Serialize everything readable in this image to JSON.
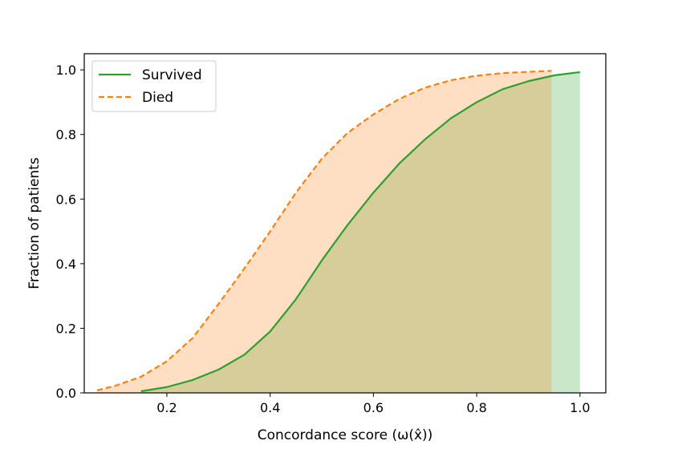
{
  "chart_data": {
    "type": "area",
    "xlabel": "Concordance score (ω(x̂))",
    "ylabel": "Fraction of patients",
    "xlim": [
      0.04,
      1.05
    ],
    "ylim": [
      0.0,
      1.05
    ],
    "xticks": [
      0.2,
      0.4,
      0.6,
      0.8,
      1.0
    ],
    "xtick_labels": [
      "0.2",
      "0.4",
      "0.6",
      "0.8",
      "1.0"
    ],
    "yticks": [
      0.0,
      0.2,
      0.4,
      0.6,
      0.8,
      1.0
    ],
    "ytick_labels": [
      "0.0",
      "0.2",
      "0.4",
      "0.6",
      "0.8",
      "1.0"
    ],
    "grid": false,
    "legend_position": "top-left",
    "series": [
      {
        "name": "Survived",
        "line_style": "solid",
        "color": "#2ca02c",
        "fill_color": "#2ca02c",
        "x": [
          0.15,
          0.2,
          0.25,
          0.3,
          0.35,
          0.4,
          0.45,
          0.5,
          0.55,
          0.6,
          0.65,
          0.7,
          0.75,
          0.8,
          0.85,
          0.9,
          0.95,
          1.0
        ],
        "y": [
          0.005,
          0.018,
          0.04,
          0.072,
          0.118,
          0.19,
          0.29,
          0.41,
          0.52,
          0.62,
          0.71,
          0.785,
          0.85,
          0.9,
          0.94,
          0.965,
          0.983,
          0.993
        ]
      },
      {
        "name": "Died",
        "line_style": "dashed",
        "color": "#ff7f0e",
        "fill_color": "#ff7f0e",
        "x": [
          0.065,
          0.1,
          0.15,
          0.2,
          0.25,
          0.3,
          0.35,
          0.4,
          0.45,
          0.5,
          0.55,
          0.6,
          0.65,
          0.7,
          0.75,
          0.8,
          0.85,
          0.9,
          0.945
        ],
        "y": [
          0.008,
          0.022,
          0.05,
          0.098,
          0.17,
          0.275,
          0.385,
          0.5,
          0.62,
          0.725,
          0.805,
          0.862,
          0.91,
          0.945,
          0.968,
          0.982,
          0.99,
          0.994,
          0.997
        ]
      }
    ]
  }
}
